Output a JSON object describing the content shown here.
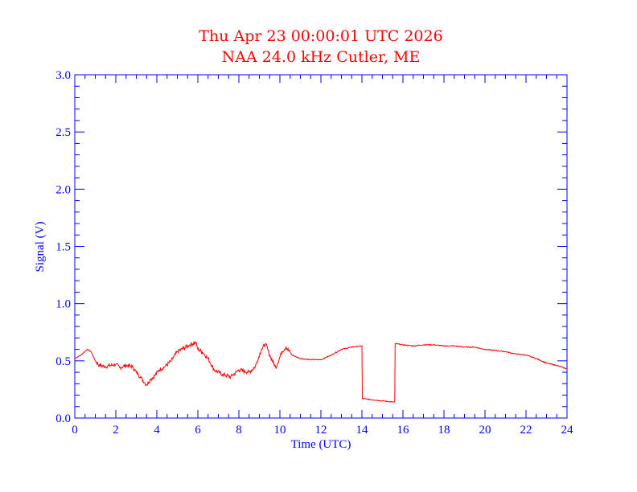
{
  "colors": {
    "title": "#ff0000",
    "axes": "#0000ff",
    "series": "#ff0000",
    "background": "#ffffff"
  },
  "chart_data": {
    "type": "line",
    "title": "Thu Apr 23 00:00:01 UTC 2026",
    "subtitle": "NAA 24.0 kHz Cutler, ME",
    "xlabel": "Time (UTC)",
    "ylabel": "Signal (V)",
    "xlim": [
      0,
      24
    ],
    "ylim": [
      0,
      3
    ],
    "x_ticks": [
      "0",
      "2",
      "4",
      "6",
      "8",
      "10",
      "12",
      "14",
      "16",
      "18",
      "20",
      "22",
      "24"
    ],
    "y_ticks": [
      "0.0",
      "0.5",
      "1.0",
      "1.5",
      "2.0",
      "2.5",
      "3.0"
    ],
    "grid": false,
    "series": [
      {
        "x": [
          0.0,
          0.3,
          0.6,
          0.8,
          1.0,
          1.2,
          1.5,
          2.0,
          2.2,
          2.5,
          2.8,
          3.0,
          3.2,
          3.4,
          3.5,
          3.7,
          3.9,
          4.1,
          4.4,
          4.7,
          5.0,
          5.3,
          5.6,
          5.9,
          6.0,
          6.2,
          6.5,
          6.8,
          7.2,
          7.6,
          8.0,
          8.5,
          8.8,
          9.1,
          9.3,
          9.5,
          9.8,
          10.1,
          10.3,
          10.6,
          11.0,
          11.5,
          12.0,
          12.5,
          13.0,
          13.5,
          14.0,
          14.02,
          14.5,
          15.0,
          15.5,
          15.6,
          15.62,
          16.0,
          16.5,
          17.0,
          17.5,
          18.0,
          18.5,
          19.0,
          19.5,
          20.0,
          20.5,
          21.0,
          21.5,
          22.0,
          22.5,
          23.0,
          23.5,
          24.0
        ],
        "y": [
          0.52,
          0.55,
          0.6,
          0.58,
          0.5,
          0.46,
          0.45,
          0.47,
          0.44,
          0.46,
          0.45,
          0.4,
          0.36,
          0.31,
          0.29,
          0.34,
          0.37,
          0.42,
          0.45,
          0.5,
          0.58,
          0.61,
          0.64,
          0.66,
          0.6,
          0.58,
          0.52,
          0.42,
          0.38,
          0.36,
          0.42,
          0.4,
          0.45,
          0.6,
          0.65,
          0.55,
          0.44,
          0.58,
          0.62,
          0.55,
          0.52,
          0.51,
          0.51,
          0.55,
          0.6,
          0.62,
          0.63,
          0.17,
          0.16,
          0.15,
          0.14,
          0.14,
          0.65,
          0.64,
          0.63,
          0.64,
          0.64,
          0.63,
          0.63,
          0.62,
          0.62,
          0.6,
          0.59,
          0.58,
          0.56,
          0.55,
          0.52,
          0.48,
          0.46,
          0.43
        ]
      }
    ]
  }
}
